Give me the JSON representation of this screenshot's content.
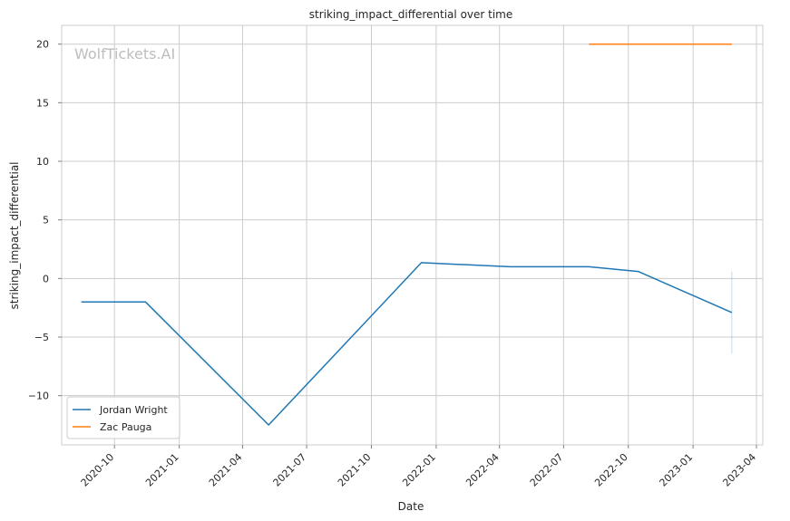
{
  "chart_data": {
    "type": "line",
    "title": "striking_impact_differential over time",
    "xlabel": "Date",
    "ylabel": "striking_impact_differential",
    "watermark": "WolfTickets.AI",
    "x_ticks": [
      "2020-10",
      "2021-01",
      "2021-04",
      "2021-07",
      "2021-10",
      "2022-01",
      "2022-04",
      "2022-07",
      "2022-10",
      "2023-01",
      "2023-04"
    ],
    "y_ticks": [
      -10,
      -5,
      0,
      5,
      10,
      15,
      20
    ],
    "xlim": [
      "2020-07-18",
      "2023-04-10"
    ],
    "ylim": [
      -14.2,
      21.6
    ],
    "grid": true,
    "legend_position": "lower-left",
    "series": [
      {
        "name": "Jordan Wright",
        "color": "#1f77b4",
        "x": [
          "2020-08-15",
          "2020-11-14",
          "2021-05-08",
          "2021-12-11",
          "2022-04-16",
          "2022-08-06",
          "2022-10-15",
          "2023-02-25"
        ],
        "y": [
          -2.0,
          -2.0,
          -12.5,
          1.35,
          1.0,
          1.0,
          0.6,
          -2.9
        ]
      },
      {
        "name": "Zac Pauga",
        "color": "#ff7f0e",
        "x": [
          "2022-08-06",
          "2023-02-25"
        ],
        "y": [
          20.0,
          20.0
        ]
      }
    ],
    "error_band": {
      "series": "Jordan Wright",
      "x": "2023-02-25",
      "low": -6.4,
      "high": 0.6
    }
  }
}
